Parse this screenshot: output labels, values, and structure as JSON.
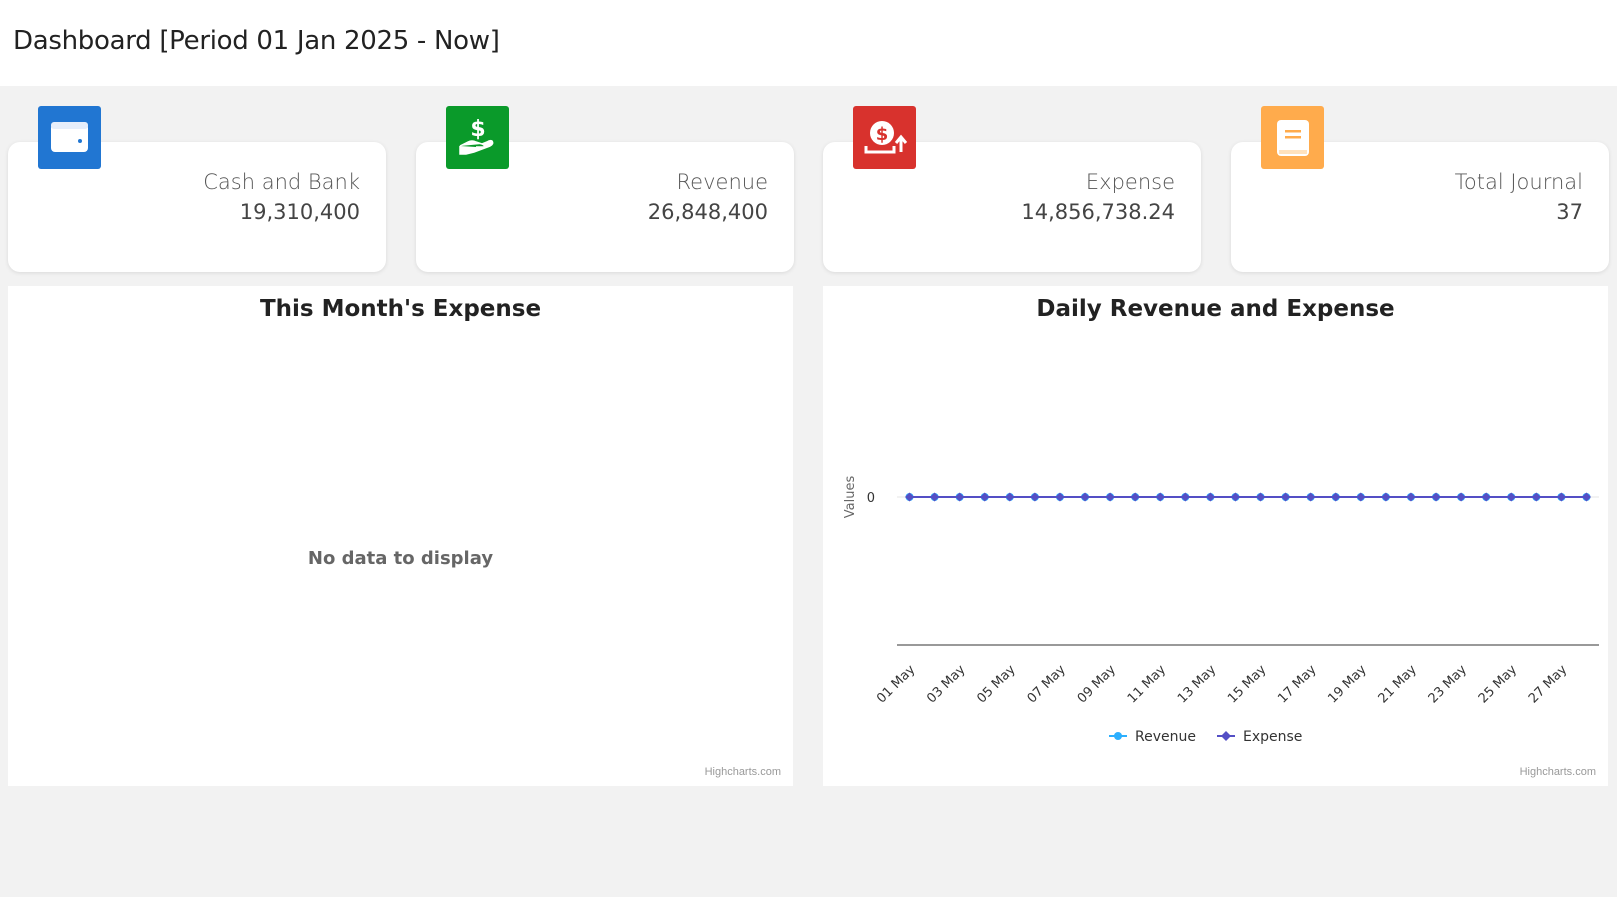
{
  "header": {
    "title": "Dashboard [Period 01 Jan 2025 - Now]"
  },
  "cards": [
    {
      "label": "Cash and Bank",
      "value": "19,310,400",
      "icon": "wallet-icon",
      "color": "#2176d2"
    },
    {
      "label": "Revenue",
      "value": "26,848,400",
      "icon": "hand-money-icon",
      "color": "#0a9a2a"
    },
    {
      "label": "Expense",
      "value": "14,856,738.24",
      "icon": "money-out-icon",
      "color": "#d8322d"
    },
    {
      "label": "Total Journal",
      "value": "37",
      "icon": "journal-book-icon",
      "color": "#ffab4c"
    }
  ],
  "expense_panel": {
    "title": "This Month's Expense",
    "empty_message": "No data to display",
    "credit": "Highcharts.com"
  },
  "daily_panel": {
    "title": "Daily Revenue and Expense",
    "credit": "Highcharts.com"
  },
  "chart_data": {
    "type": "line",
    "title": "Daily Revenue and Expense",
    "ylabel": "Values",
    "xlabel": "",
    "y_ticks": [
      "0"
    ],
    "x_tick_labels": [
      "01 May",
      "03 May",
      "05 May",
      "07 May",
      "09 May",
      "11 May",
      "13 May",
      "15 May",
      "17 May",
      "19 May",
      "21 May",
      "23 May",
      "25 May",
      "27 May"
    ],
    "x": [
      "01 May",
      "02 May",
      "03 May",
      "04 May",
      "05 May",
      "06 May",
      "07 May",
      "08 May",
      "09 May",
      "10 May",
      "11 May",
      "12 May",
      "13 May",
      "14 May",
      "15 May",
      "16 May",
      "17 May",
      "18 May",
      "19 May",
      "20 May",
      "21 May",
      "22 May",
      "23 May",
      "24 May",
      "25 May",
      "26 May",
      "27 May",
      "28 May"
    ],
    "series": [
      {
        "name": "Revenue",
        "color": "#2caffe",
        "values": [
          0,
          0,
          0,
          0,
          0,
          0,
          0,
          0,
          0,
          0,
          0,
          0,
          0,
          0,
          0,
          0,
          0,
          0,
          0,
          0,
          0,
          0,
          0,
          0,
          0,
          0,
          0,
          0
        ]
      },
      {
        "name": "Expense",
        "color": "#544fc5",
        "values": [
          0,
          0,
          0,
          0,
          0,
          0,
          0,
          0,
          0,
          0,
          0,
          0,
          0,
          0,
          0,
          0,
          0,
          0,
          0,
          0,
          0,
          0,
          0,
          0,
          0,
          0,
          0,
          0
        ]
      }
    ],
    "legend": "bottom-center",
    "grid": true
  }
}
